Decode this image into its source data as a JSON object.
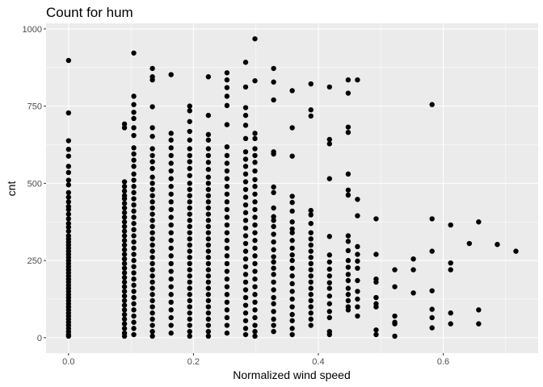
{
  "chart_data": {
    "type": "scatter",
    "title": "Count for hum",
    "xlabel": "Normalized wind speed",
    "ylabel": "cnt",
    "xlim": [
      -0.036,
      0.752
    ],
    "ylim": [
      -50,
      1018
    ],
    "x_ticks": [
      {
        "value": 0.0,
        "label": "0.0"
      },
      {
        "value": 0.2,
        "label": "0.2"
      },
      {
        "value": 0.4,
        "label": "0.4"
      },
      {
        "value": 0.6,
        "label": "0.6"
      }
    ],
    "y_ticks": [
      {
        "value": 0,
        "label": "0"
      },
      {
        "value": 250,
        "label": "250"
      },
      {
        "value": 500,
        "label": "500"
      },
      {
        "value": 750,
        "label": "750"
      },
      {
        "value": 1000,
        "label": "1000"
      }
    ],
    "grid": true,
    "legend": "none",
    "colors": {
      "panel_background": "#ebebeb",
      "grid_major": "#ffffff",
      "point": "#000000"
    },
    "columns": [
      {
        "x": 0.0,
        "points": [
          898,
          728,
          638,
          610,
          588,
          555,
          535,
          510,
          495,
          470,
          455,
          440,
          425,
          415,
          400,
          385,
          370,
          358,
          345,
          330,
          320,
          310,
          300,
          290,
          280,
          270,
          260,
          250,
          240,
          230,
          220,
          210,
          200,
          190,
          180,
          170,
          160,
          150,
          140,
          130,
          120,
          110,
          100,
          90,
          80,
          70,
          60,
          50,
          40,
          30,
          20,
          10,
          5
        ]
      },
      {
        "x": 0.0896,
        "points": [
          692,
          680,
          505,
          490,
          475,
          460,
          450,
          435,
          420,
          405,
          390,
          375,
          360,
          345,
          330,
          315,
          300,
          285,
          270,
          255,
          240,
          225,
          210,
          195,
          180,
          165,
          150,
          135,
          120,
          105,
          90,
          75,
          60,
          45,
          30,
          15,
          5
        ]
      },
      {
        "x": 0.1045,
        "points": [
          922,
          782,
          755,
          730,
          710,
          680,
          655,
          615,
          595,
          575,
          555,
          530,
          510,
          490,
          470,
          450,
          430,
          410,
          390,
          370,
          350,
          330,
          310,
          290,
          270,
          250,
          230,
          210,
          190,
          170,
          150,
          130,
          110,
          90,
          70,
          50,
          30,
          10
        ]
      },
      {
        "x": 0.1343,
        "points": [
          872,
          845,
          835,
          748,
          680,
          652,
          612,
          590,
          570,
          548,
          520,
          500,
          480,
          460,
          440,
          420,
          400,
          380,
          360,
          340,
          320,
          300,
          280,
          260,
          240,
          220,
          200,
          180,
          160,
          140,
          120,
          100,
          80,
          60,
          40,
          20,
          5
        ]
      },
      {
        "x": 0.1642,
        "points": [
          852,
          662,
          640,
          615,
          590,
          565,
          540,
          515,
          490,
          465,
          440,
          415,
          390,
          365,
          340,
          315,
          290,
          265,
          240,
          215,
          190,
          165,
          140,
          115,
          90,
          65,
          40,
          15
        ]
      },
      {
        "x": 0.194,
        "points": [
          750,
          735,
          700,
          668,
          640,
          612,
          590,
          570,
          548,
          525,
          500,
          480,
          460,
          440,
          420,
          400,
          380,
          360,
          340,
          320,
          300,
          280,
          260,
          240,
          220,
          200,
          180,
          160,
          140,
          120,
          100,
          80,
          60,
          40,
          20,
          5
        ]
      },
      {
        "x": 0.2239,
        "points": [
          845,
          720,
          658,
          640,
          612,
          590,
          568,
          545,
          520,
          500,
          480,
          460,
          440,
          420,
          400,
          380,
          360,
          340,
          320,
          300,
          280,
          260,
          240,
          220,
          200,
          180,
          160,
          140,
          120,
          100,
          80,
          60,
          40,
          20,
          5
        ]
      },
      {
        "x": 0.2537,
        "points": [
          858,
          835,
          810,
          782,
          752,
          690,
          618,
          590,
          565,
          540,
          515,
          490,
          465,
          440,
          415,
          390,
          365,
          340,
          315,
          290,
          265,
          240,
          215,
          190,
          165,
          140,
          115,
          90,
          65,
          40,
          15
        ]
      },
      {
        "x": 0.2836,
        "points": [
          892,
          812,
          745,
          720,
          688,
          645,
          602,
          578,
          555,
          530,
          505,
          480,
          455,
          430,
          405,
          380,
          355,
          330,
          305,
          280,
          255,
          230,
          205,
          180,
          155,
          130,
          105,
          80,
          55,
          30,
          10
        ]
      },
      {
        "x": 0.2985,
        "points": [
          968,
          832,
          662,
          645,
          612,
          590,
          568,
          540,
          512,
          490,
          465,
          440,
          415,
          390,
          365,
          340,
          315,
          290,
          265,
          240,
          215,
          190,
          165,
          140,
          115,
          90,
          65,
          40,
          20,
          5
        ]
      },
      {
        "x": 0.3284,
        "points": [
          872,
          828,
          770,
          602,
          595,
          488,
          470,
          420,
          392,
          380,
          360,
          335,
          310,
          285,
          262,
          245,
          225,
          205,
          180,
          155,
          130,
          110,
          85,
          60,
          40,
          20
        ]
      },
      {
        "x": 0.3582,
        "points": [
          800,
          680,
          588,
          458,
          438,
          410,
          375,
          352,
          340,
          315,
          290,
          268,
          250,
          225,
          200,
          175,
          150,
          125,
          100,
          75,
          55,
          30,
          10
        ]
      },
      {
        "x": 0.3881,
        "points": [
          822,
          738,
          718,
          412,
          398,
          370,
          340,
          320,
          300,
          280,
          260,
          240,
          220,
          200,
          180,
          160,
          140,
          120,
          100,
          80,
          60,
          40
        ]
      },
      {
        "x": 0.4179,
        "points": [
          812,
          642,
          628,
          515,
          328,
          268,
          245,
          222,
          200,
          178,
          160,
          135,
          110,
          85,
          65,
          20,
          10
        ]
      },
      {
        "x": 0.4478,
        "points": [
          835,
          792,
          682,
          665,
          530,
          478,
          462,
          330,
          312,
          282,
          250,
          228,
          205,
          185,
          160,
          140,
          120,
          100,
          90
        ]
      },
      {
        "x": 0.4627,
        "points": [
          835,
          448,
          395,
          295,
          270,
          248,
          225,
          185,
          150,
          125,
          100,
          70
        ]
      },
      {
        "x": 0.4925,
        "points": [
          385,
          270,
          190,
          180,
          130,
          110,
          100,
          25,
          10
        ]
      },
      {
        "x": 0.5224,
        "points": [
          220,
          165,
          70,
          50,
          45,
          5
        ]
      },
      {
        "x": 0.5522,
        "points": [
          255,
          220,
          145
        ]
      },
      {
        "x": 0.5821,
        "points": [
          755,
          385,
          280,
          152,
          92,
          65,
          32
        ]
      },
      {
        "x": 0.6119,
        "points": [
          365,
          242,
          220,
          80,
          45
        ]
      },
      {
        "x": 0.6418,
        "points": [
          305
        ]
      },
      {
        "x": 0.6567,
        "points": [
          375,
          90,
          45
        ]
      },
      {
        "x": 0.6866,
        "points": [
          302
        ]
      },
      {
        "x": 0.7164,
        "points": [
          280
        ]
      }
    ]
  }
}
